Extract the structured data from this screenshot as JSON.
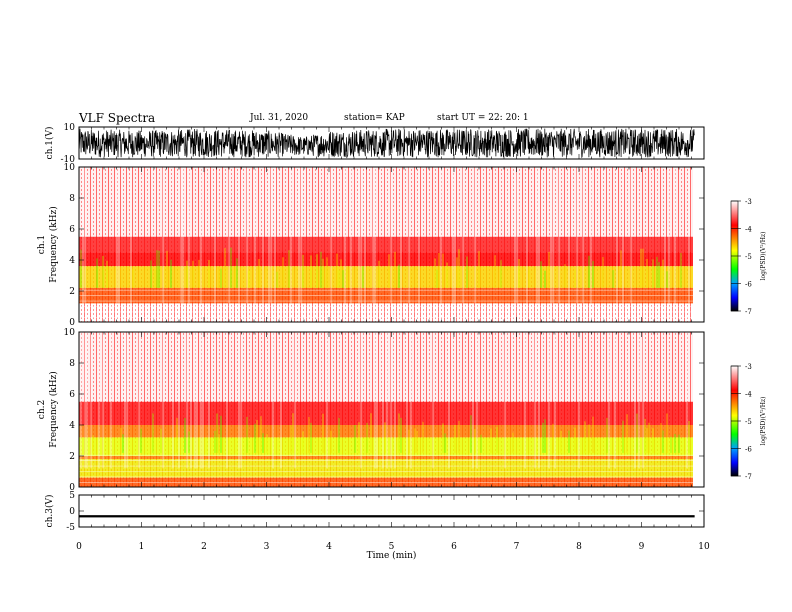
{
  "header": {
    "title": "VLF Spectra",
    "date": "Jul. 31, 2020",
    "station": "station= KAP",
    "start": "start UT =   22: 20: 1"
  },
  "colorbar": {
    "label": "log(PSD)(V²/Hz)",
    "ticks": [
      "-3",
      "-4",
      "-5",
      "-6",
      "-7"
    ],
    "colors": [
      "#ffffff",
      "#ff0000",
      "#ffff00",
      "#00ff00",
      "#00a0ff",
      "#0000ff",
      "#000000"
    ]
  },
  "chart_data": [
    {
      "type": "line",
      "panel": "ch1-waveform",
      "ylabel": "ch.1(V)",
      "ylim": [
        -10,
        10
      ],
      "yticks": [
        "10",
        "-10"
      ],
      "xlim": [
        0,
        10
      ],
      "note_values": "rapid noise oscillation roughly between -9 and +9 V across 0-9.85 min",
      "x": [
        0,
        1,
        2,
        3,
        3.6,
        4,
        5,
        6,
        7,
        8,
        9,
        9.85
      ],
      "y_upper": [
        9,
        8,
        9,
        8,
        4,
        8,
        9,
        9,
        9,
        9,
        9,
        9
      ],
      "y_lower": [
        -9,
        -9,
        -9,
        -9,
        -8,
        -9,
        -9,
        -9,
        -9,
        -9,
        -9,
        -9
      ]
    },
    {
      "type": "heatmap",
      "panel": "ch1-spectrogram",
      "ylabel": "ch.1\nFrequency (kHz)",
      "ylim": [
        0,
        10
      ],
      "yticks": [
        "0",
        "2",
        "4",
        "6",
        "8",
        "10"
      ],
      "xlim": [
        0,
        10
      ],
      "zlim": [
        -7,
        -3
      ],
      "bands_khz": [
        {
          "from": 5.5,
          "to": 10,
          "level": -3.1
        },
        {
          "from": 4.5,
          "to": 5.5,
          "level": -3.6
        },
        {
          "from": 3.6,
          "to": 4.5,
          "level": -4.0
        },
        {
          "from": 2.2,
          "to": 3.6,
          "level": -4.6
        },
        {
          "from": 1.2,
          "to": 2.2,
          "level": -4.2
        },
        {
          "from": 0,
          "to": 1.2,
          "level": -3.0
        }
      ]
    },
    {
      "type": "heatmap",
      "panel": "ch2-spectrogram",
      "ylabel": "ch.2\nFrequency (kHz)",
      "ylim": [
        0,
        10
      ],
      "yticks": [
        "0",
        "2",
        "4",
        "6",
        "8",
        "10"
      ],
      "xlim": [
        0,
        10
      ],
      "zlim": [
        -7,
        -3
      ],
      "bands_khz": [
        {
          "from": 5.5,
          "to": 10,
          "level": -3.1
        },
        {
          "from": 4.0,
          "to": 5.5,
          "level": -3.8
        },
        {
          "from": 3.2,
          "to": 4.0,
          "level": -4.3
        },
        {
          "from": 2.0,
          "to": 3.2,
          "level": -5.0
        },
        {
          "from": 1.8,
          "to": 2.0,
          "level": -4.3
        },
        {
          "from": 0.6,
          "to": 1.8,
          "level": -4.8
        },
        {
          "from": 0,
          "to": 0.6,
          "level": -4.2
        }
      ]
    },
    {
      "type": "line",
      "panel": "ch3-waveform",
      "ylabel": "ch.3(V)",
      "ylim": [
        -5,
        5
      ],
      "yticks": [
        "5",
        "0",
        "-5"
      ],
      "xlim": [
        0,
        10
      ],
      "xlabel": "Time (min)",
      "xticks": [
        "0",
        "1",
        "2",
        "3",
        "4",
        "5",
        "6",
        "7",
        "8",
        "9",
        "10"
      ],
      "x": [
        0,
        9.85
      ],
      "y_upper": [
        -1.3,
        -1.3
      ],
      "y_lower": [
        -2.0,
        -2.0
      ]
    }
  ]
}
